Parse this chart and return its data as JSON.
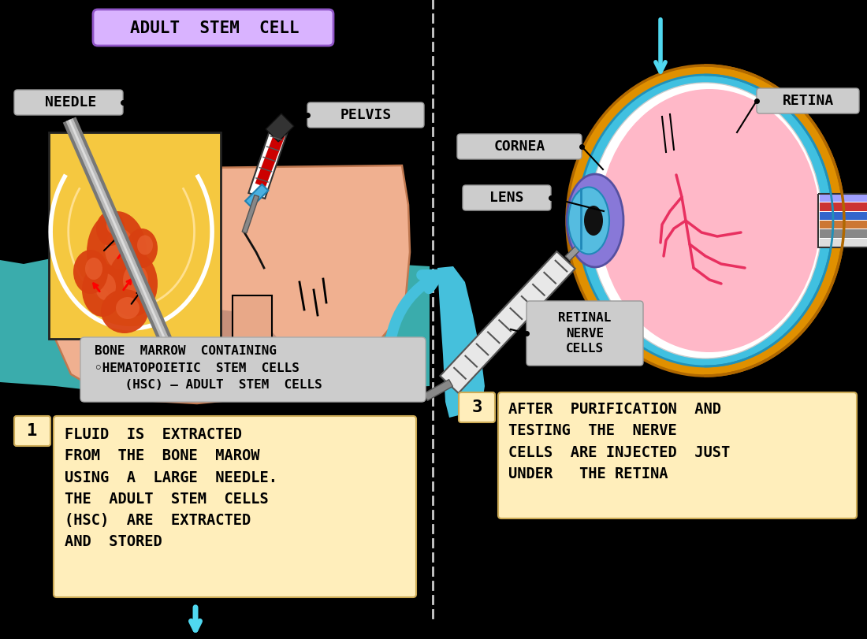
{
  "bg_color": "#000000",
  "title_box_color": "#d9b3ff",
  "label_box_color": "#cccccc",
  "yellow_box_color": "#ffeebb",
  "title_text": "ADULT  STEM  CELL",
  "needle_label": "NEEDLE",
  "pelvis_label": "PELVIS",
  "cornea_label": "CORNEA",
  "lens_label": "LENS",
  "retina_label": "RETINA",
  "retinal_nerve_label": "RETINAL\nNERVE\nCELLS",
  "bone_marrow_label": "BONE  MARROW  CONTAINING\n◦HEMATOPOIETIC  STEM  CELLS\n    (HSC) – ADULT  STEM  CELLS",
  "box1_number": "1",
  "box1_text": "FLUID  IS  EXTRACTED\nFROM  THE  BONE  MAROW\nUSING  A  LARGE  NEEDLE.\nTHE  ADULT  STEM  CELLS\n(HSC)  ARE  EXTRACTED\nAND  STORED",
  "box3_number": "3",
  "box3_text": "AFTER  PURIFICATION  AND\nTESTING  THE  NERVE\nCELLS  ARE INJECTED  JUST\nUNDER   THE RETINA",
  "teal_wave": "#3aacac",
  "body_skin": "#f0b090",
  "body_edge": "#c07850",
  "bone_yellow": "#f5c840",
  "marrow_orange": "#e05010",
  "cyan_arrow": "#50c8e0"
}
